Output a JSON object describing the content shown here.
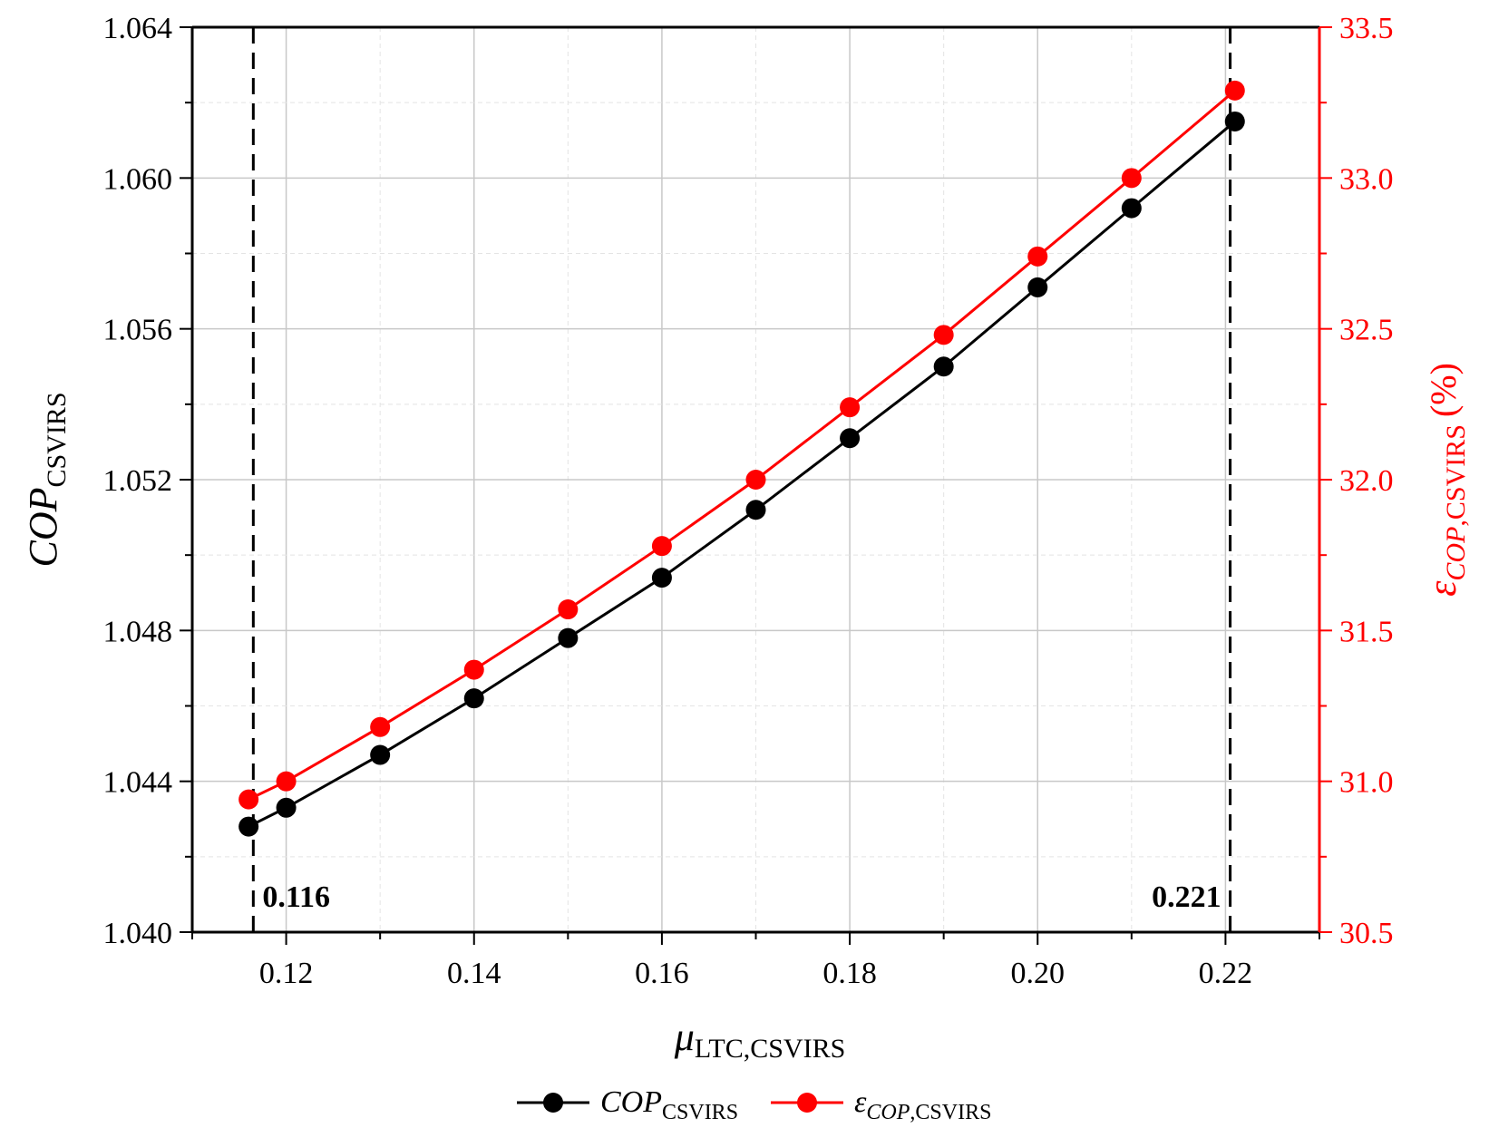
{
  "chart_data": {
    "type": "line",
    "xlabel": {
      "main": "μ",
      "sub": "LTC,CSVIRS"
    },
    "ylabel_left": {
      "main": "COP",
      "sub": "CSVIRS"
    },
    "ylabel_right": {
      "main": "ε",
      "sub_italic": "COP",
      "sub": ",CSVIRS",
      "suffix": "(%)"
    },
    "xlim": [
      0.11,
      0.23
    ],
    "ylim_left": [
      1.04,
      1.064
    ],
    "ylim_right": [
      30.5,
      33.5
    ],
    "x_ticks": [
      0.12,
      0.14,
      0.16,
      0.18,
      0.2,
      0.22
    ],
    "x_tick_labels": [
      "0.12",
      "0.14",
      "0.16",
      "0.18",
      "0.20",
      "0.22"
    ],
    "y_left_ticks": [
      1.04,
      1.044,
      1.048,
      1.052,
      1.056,
      1.06,
      1.064
    ],
    "y_left_tick_labels": [
      "1.040",
      "1.044",
      "1.048",
      "1.052",
      "1.056",
      "1.060",
      "1.064"
    ],
    "y_right_ticks": [
      30.5,
      31.0,
      31.5,
      32.0,
      32.5,
      33.0,
      33.5
    ],
    "y_right_tick_labels": [
      "30.5",
      "31.0",
      "31.5",
      "32.0",
      "32.5",
      "33.0",
      "33.5"
    ],
    "grid": true,
    "legend": "bottom",
    "x": [
      0.116,
      0.12,
      0.13,
      0.14,
      0.15,
      0.16,
      0.17,
      0.18,
      0.19,
      0.2,
      0.21,
      0.221
    ],
    "series": [
      {
        "name": {
          "main": "COP",
          "sub": "CSVIRS"
        },
        "axis": "left",
        "color": "#000000",
        "values": [
          1.0428,
          1.0433,
          1.0447,
          1.0462,
          1.0478,
          1.0494,
          1.0512,
          1.0531,
          1.055,
          1.0571,
          1.0592,
          1.0615
        ]
      },
      {
        "name": {
          "main": "ε",
          "sub_italic": "COP",
          "sub": ",CSVIRS"
        },
        "axis": "right",
        "color": "#ff0000",
        "values": [
          30.94,
          31.0,
          31.18,
          31.37,
          31.57,
          31.78,
          32.0,
          32.24,
          32.48,
          32.74,
          33.0,
          33.29
        ]
      }
    ],
    "vlines": [
      {
        "x": 0.1165,
        "label": "0.116"
      },
      {
        "x": 0.2205,
        "label": "0.221"
      }
    ]
  }
}
